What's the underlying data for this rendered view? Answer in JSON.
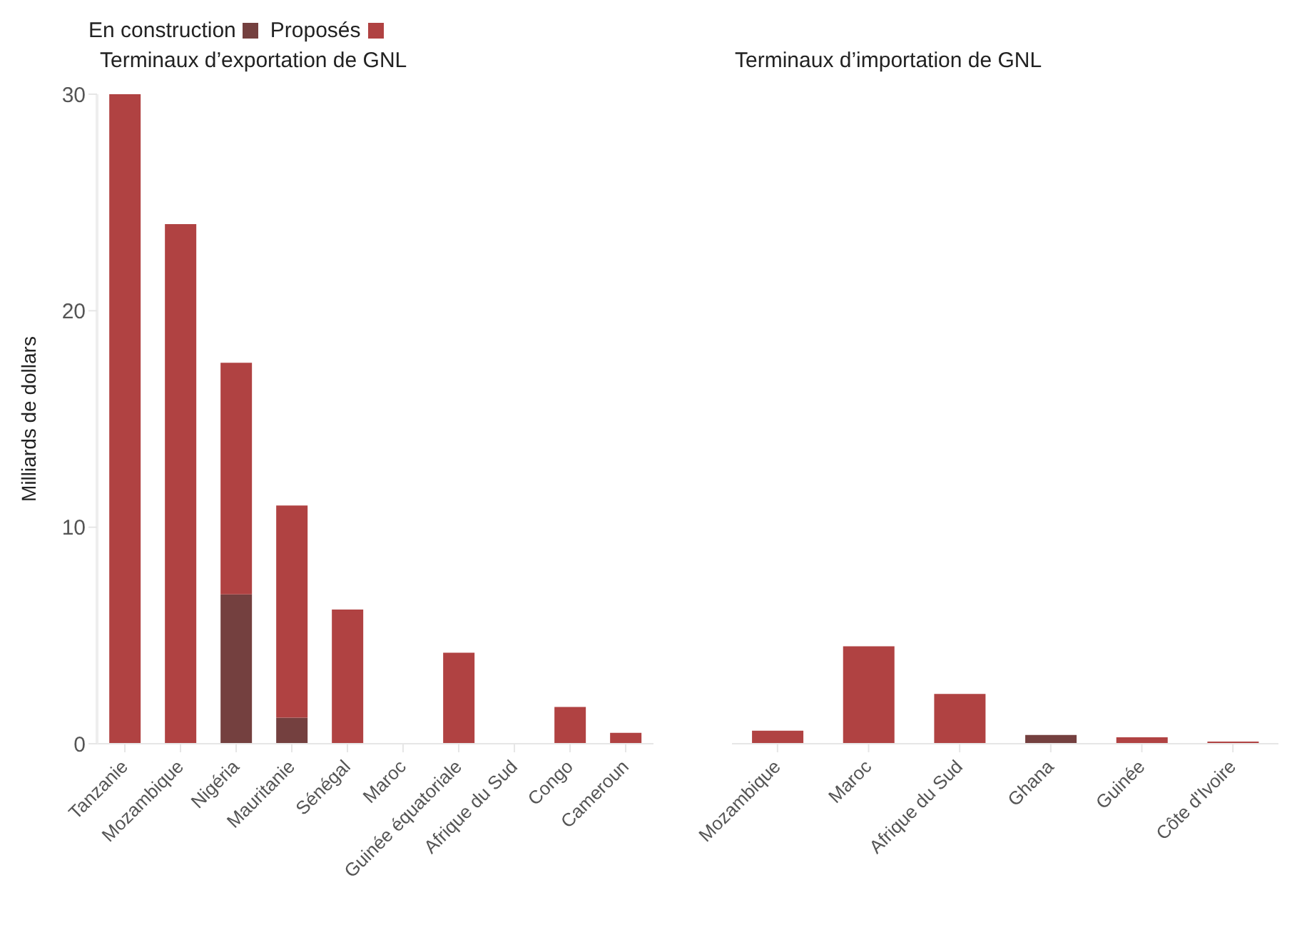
{
  "chart_data": [
    {
      "type": "bar",
      "title": "Terminaux d’exportation de GNL",
      "ylabel": "Milliards de dollars",
      "categories": [
        "Tanzanie",
        "Mozambique",
        "Nigéria",
        "Mauritanie",
        "Sénégal",
        "Maroc",
        "Guinée équatoriale",
        "Afrique du Sud",
        "Congo",
        "Cameroun"
      ],
      "stacked": true,
      "legend": "top left",
      "ylim": [
        0,
        30
      ],
      "yticks": [
        0,
        10,
        20,
        30
      ],
      "series": [
        {
          "name": "En construction",
          "color": "#74403f",
          "values": [
            null,
            null,
            6.9,
            1.2,
            null,
            null,
            null,
            null,
            null,
            null
          ]
        },
        {
          "name": "Proposés",
          "color": "#b04242",
          "values": [
            30,
            24,
            10.7,
            9.8,
            6.2,
            null,
            4.2,
            null,
            1.7,
            0.5
          ]
        }
      ]
    },
    {
      "type": "bar",
      "title": "Terminaux d’importation de GNL",
      "categories": [
        "Mozambique",
        "Maroc",
        "Afrique du Sud",
        "Ghana",
        "Guinée",
        "Côte d'Ivoire"
      ],
      "stacked": true,
      "ylim": [
        0,
        30
      ],
      "yticks": [
        0,
        10,
        20,
        30
      ],
      "tick_labels": "x",
      "series": [
        {
          "name": "En construction",
          "color": "#74403f",
          "values": [
            null,
            null,
            null,
            0.4,
            null,
            null
          ]
        },
        {
          "name": "Proposés",
          "color": "#b04242",
          "values": [
            0.6,
            4.5,
            2.3,
            null,
            0.3,
            0.1
          ]
        }
      ]
    }
  ]
}
